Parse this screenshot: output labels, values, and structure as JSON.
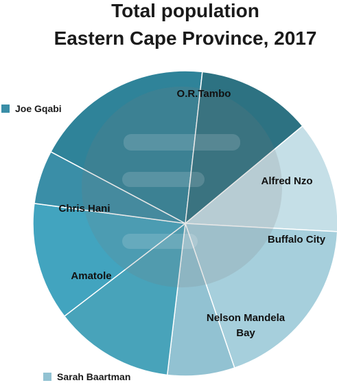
{
  "chart_data": {
    "type": "pie",
    "title_line1": "Total population",
    "title_line2": "Eastern Cape Province, 2017",
    "slices": [
      {
        "label": "O.R.Tambo",
        "value": 18.4,
        "color": "#2f8399"
      },
      {
        "label": "Alfred Nzo",
        "value": 11.8,
        "color": "#2d7282"
      },
      {
        "label": "Buffalo City",
        "value": 11.5,
        "color": "#c5dfe7"
      },
      {
        "label": "Nelson Mandela Bay",
        "value": 18.3,
        "color": "#a6cfdc"
      },
      {
        "label": "Sarah Baartman",
        "value": 6.9,
        "color": "#92c2d2"
      },
      {
        "label": "Amatole",
        "value": 12.3,
        "color": "#48a3ba"
      },
      {
        "label": "Chris Hani",
        "value": 12.1,
        "color": "#42a4bf"
      },
      {
        "label": "Joe Gqabi",
        "value": 5.5,
        "color": "#3a8ea7"
      }
    ],
    "inside_labels": [
      "O.R.Tambo",
      "Alfred Nzo",
      "Buffalo City",
      "Nelson Mandela Bay",
      "Amatole",
      "Chris Hani"
    ],
    "outside_labels": [
      "Joe Gqabi",
      "Sarah Baartman"
    ],
    "legend": "none"
  }
}
